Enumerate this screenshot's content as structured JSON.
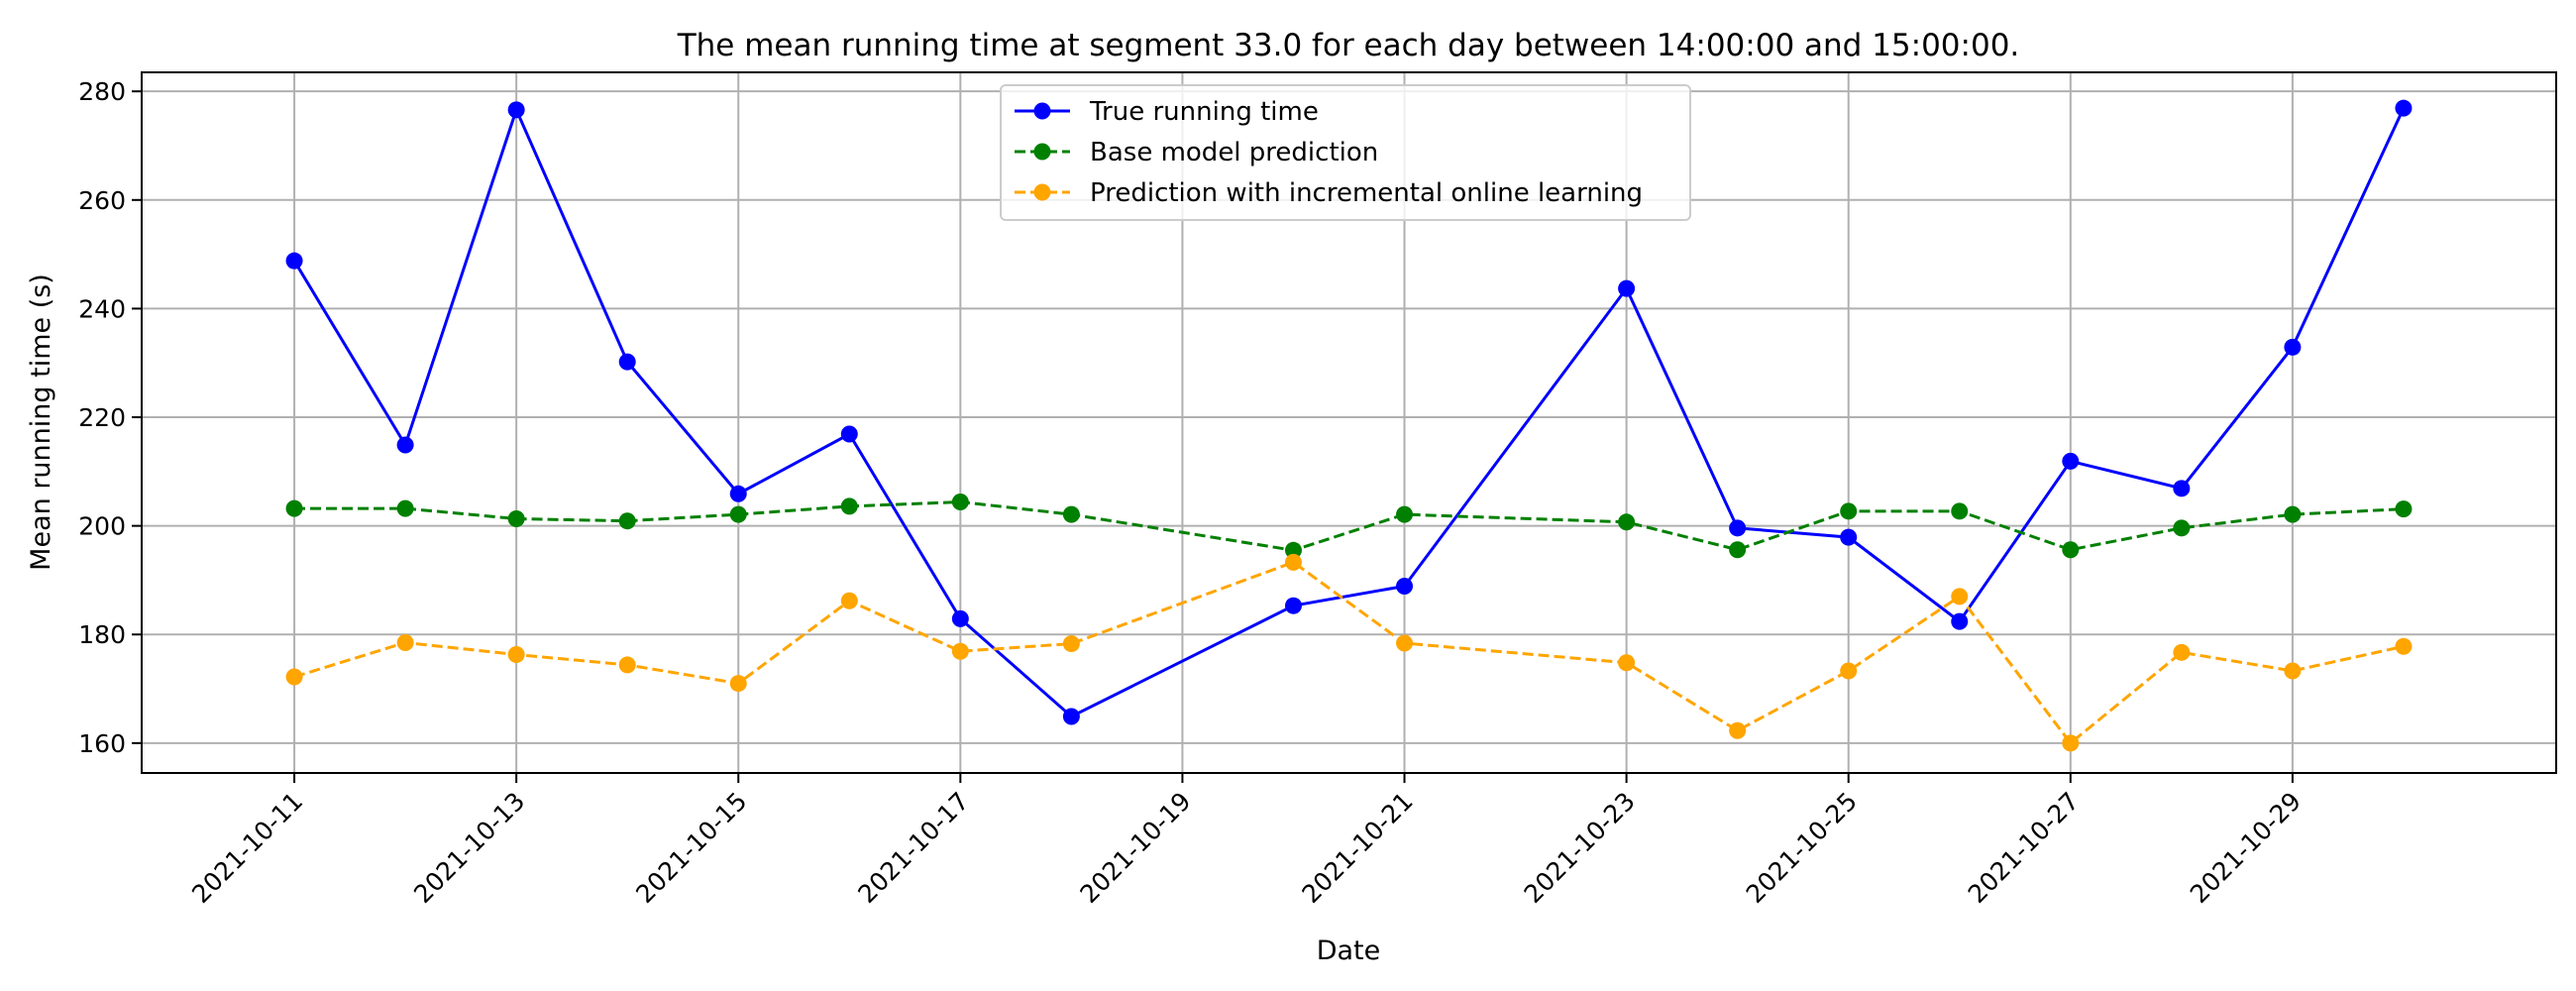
{
  "chart_data": {
    "type": "line",
    "title": "The mean running time at segment 33.0 for each day between 14:00:00 and 15:00:00.",
    "xlabel": "Date",
    "ylabel": "Mean running time (s)",
    "xlim": [
      "2021-10-09T15:00",
      "2021-10-31T09:00"
    ],
    "ylim": [
      154.5,
      283.5
    ],
    "x_ticks": [
      "2021-10-11",
      "2021-10-13",
      "2021-10-15",
      "2021-10-17",
      "2021-10-19",
      "2021-10-21",
      "2021-10-23",
      "2021-10-25",
      "2021-10-27",
      "2021-10-29"
    ],
    "y_ticks": [
      160,
      180,
      200,
      220,
      240,
      260,
      280
    ],
    "grid": true,
    "legend_position": "top-center",
    "x": [
      "2021-10-11",
      "2021-10-12",
      "2021-10-13",
      "2021-10-14",
      "2021-10-15",
      "2021-10-16",
      "2021-10-17",
      "2021-10-18",
      "2021-10-20",
      "2021-10-21",
      "2021-10-23",
      "2021-10-24",
      "2021-10-25",
      "2021-10-26",
      "2021-10-27",
      "2021-10-28",
      "2021-10-29",
      "2021-10-30"
    ],
    "series": [
      {
        "name": "True running time",
        "color": "#0000ff",
        "line_style": "solid",
        "marker": "circle",
        "values": [
          248.8,
          214.9,
          276.6,
          230.2,
          205.9,
          216.9,
          182.9,
          164.9,
          185.3,
          188.9,
          243.7,
          199.6,
          197.9,
          182.4,
          211.9,
          206.9,
          232.9,
          276.9
        ]
      },
      {
        "name": "Base model prediction",
        "color": "#008000",
        "line_style": "dashed",
        "marker": "circle",
        "values": [
          203.2,
          203.2,
          201.3,
          200.9,
          202.1,
          203.6,
          204.4,
          202.1,
          195.5,
          202.1,
          200.7,
          195.6,
          202.7,
          202.7,
          195.6,
          199.6,
          202.1,
          203.1
        ]
      },
      {
        "name": "Prediction with incremental online learning",
        "color": "#ffa500",
        "line_style": "dashed",
        "marker": "circle",
        "values": [
          172.2,
          178.5,
          176.3,
          174.4,
          171.0,
          186.2,
          176.9,
          178.3,
          193.3,
          178.4,
          174.8,
          162.3,
          173.3,
          187.0,
          160.0,
          176.7,
          173.3,
          177.8
        ]
      }
    ]
  }
}
